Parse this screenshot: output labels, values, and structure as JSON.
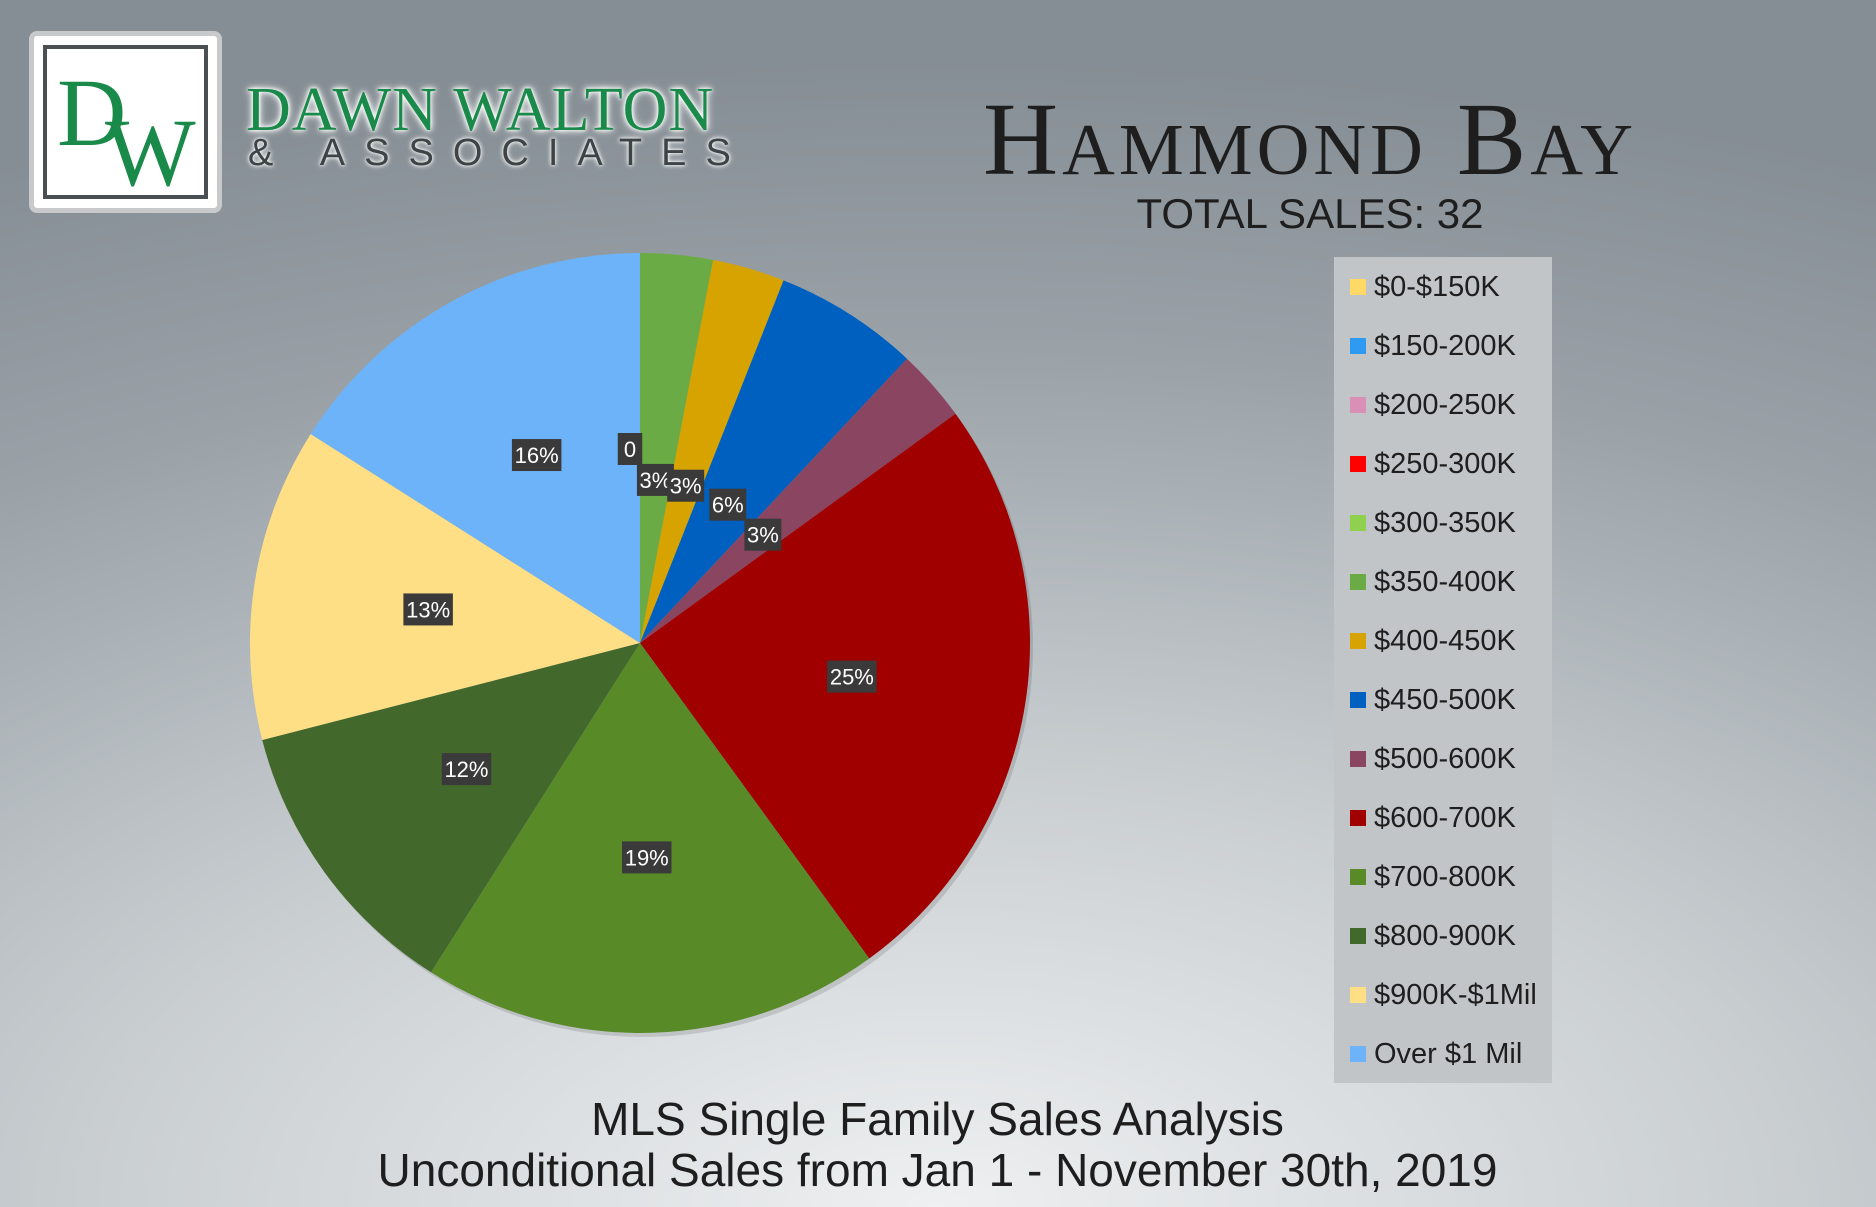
{
  "header": {
    "brand_monogram": "DW",
    "brand_name": "DAWN WALTON",
    "brand_sub": "& ASSOCIATES",
    "title": "Hammond Bay",
    "subtitle": "TOTAL SALES: 32"
  },
  "colors": {
    "brand_green": "#1a8a4a",
    "label_box": "#3a3a3a"
  },
  "chart_data": {
    "type": "pie",
    "title": "Hammond Bay",
    "subtitle": "TOTAL SALES: 32",
    "legend_position": "right",
    "slices": [
      {
        "label": "$0-$150K",
        "value": 0,
        "display": "0",
        "color": "#ffd966"
      },
      {
        "label": "$150-200K",
        "value": 0,
        "display": "",
        "color": "#2f9af2"
      },
      {
        "label": "$200-250K",
        "value": 0,
        "display": "",
        "color": "#d98fb6"
      },
      {
        "label": "$250-300K",
        "value": 0,
        "display": "",
        "color": "#ff0000"
      },
      {
        "label": "$300-350K",
        "value": 0,
        "display": "",
        "color": "#8fd14f"
      },
      {
        "label": "$350-400K",
        "value": 3,
        "display": "3%",
        "color": "#6aab45"
      },
      {
        "label": "$400-450K",
        "value": 3,
        "display": "3%",
        "color": "#d6a300"
      },
      {
        "label": "$450-500K",
        "value": 6,
        "display": "6%",
        "color": "#0060bf"
      },
      {
        "label": "$500-600K",
        "value": 3,
        "display": "3%",
        "color": "#8a4561"
      },
      {
        "label": "$600-700K",
        "value": 25,
        "display": "25%",
        "color": "#a00000"
      },
      {
        "label": "$700-800K",
        "value": 19,
        "display": "19%",
        "color": "#588a28"
      },
      {
        "label": "$800-900K",
        "value": 12,
        "display": "12%",
        "color": "#43682c"
      },
      {
        "label": "$900K-$1Mil",
        "value": 13,
        "display": "13%",
        "color": "#ffdf85"
      },
      {
        "label": "Over $1 Mil",
        "value": 16,
        "display": "16%",
        "color": "#6db3fa"
      }
    ]
  },
  "footer": {
    "line1": "MLS Single Family Sales Analysis",
    "line2": "Unconditional Sales from Jan 1 - November 30th, 2019"
  }
}
